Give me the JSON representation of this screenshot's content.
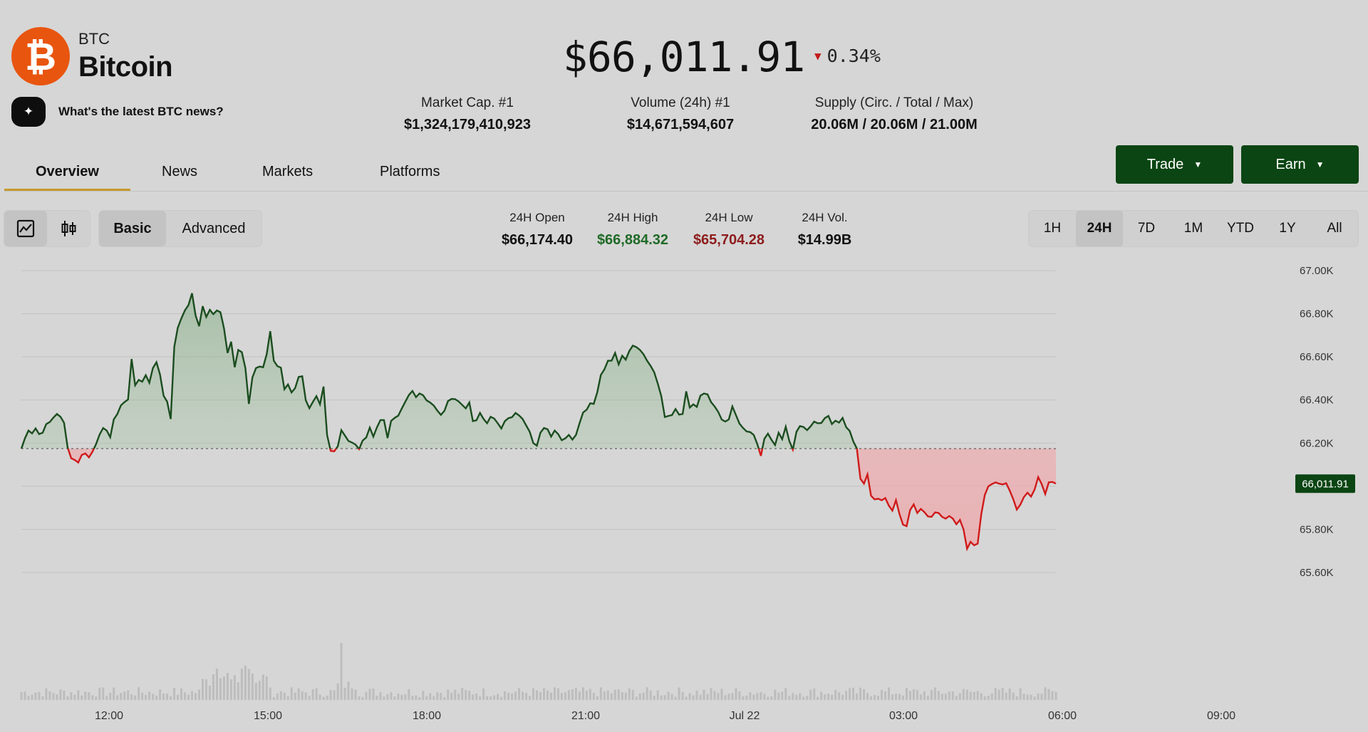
{
  "coin": {
    "symbol": "BTC",
    "name": "Bitcoin",
    "logo_glyph": "₿",
    "logo_color": "#e8550f"
  },
  "price": {
    "value": "$66,011.91",
    "change": "0.34%",
    "direction": "down"
  },
  "news_prompt": "What's the latest BTC news?",
  "stats": [
    {
      "label": "Market Cap. #1",
      "value": "$1,324,179,410,923"
    },
    {
      "label": "Volume (24h) #1",
      "value": "$14,671,594,607"
    },
    {
      "label": "Supply (Circ. / Total / Max)",
      "value": "20.06M / 20.06M / 21.00M"
    }
  ],
  "tabs": [
    {
      "label": "Overview",
      "active": true
    },
    {
      "label": "News",
      "active": false
    },
    {
      "label": "Markets",
      "active": false
    },
    {
      "label": "Platforms",
      "active": false
    }
  ],
  "actions": {
    "trade_label": "Trade",
    "earn_label": "Earn",
    "color": "#0b4513"
  },
  "chart_modes": {
    "basic": "Basic",
    "advanced": "Advanced",
    "selected": "basic"
  },
  "day_stats": [
    {
      "label": "24H Open",
      "value": "$66,174.40",
      "color": "#111111"
    },
    {
      "label": "24H High",
      "value": "$66,884.32",
      "color": "#1f6a27"
    },
    {
      "label": "24H Low",
      "value": "$65,704.28",
      "color": "#8e1d1d"
    },
    {
      "label": "24H Vol.",
      "value": "$14.99B",
      "color": "#111111"
    }
  ],
  "ranges": [
    {
      "label": "1H",
      "selected": false
    },
    {
      "label": "24H",
      "selected": true
    },
    {
      "label": "7D",
      "selected": false
    },
    {
      "label": "1M",
      "selected": false
    },
    {
      "label": "YTD",
      "selected": false
    },
    {
      "label": "1Y",
      "selected": false
    },
    {
      "label": "All",
      "selected": false
    }
  ],
  "chart_data": {
    "type": "line",
    "x_ticks": [
      "12:00",
      "15:00",
      "18:00",
      "21:00",
      "Jul 22",
      "03:00",
      "06:00",
      "09:00"
    ],
    "y_ticks": [
      "67.00K",
      "66.80K",
      "66.60K",
      "66.40K",
      "66.20K",
      "66.00K",
      "65.80K",
      "65.60K"
    ],
    "y_tick_values": [
      67000,
      66800,
      66600,
      66400,
      66200,
      66000,
      65800,
      65600
    ],
    "ylim": [
      65600,
      67000
    ],
    "reference_line": 66174.4,
    "current_label": "66,011.91",
    "current_value": 66011.91,
    "up_color": "#1b4d1f",
    "down_color": "#d01a1a",
    "series": [
      {
        "values": [
          66174,
          66222,
          66258,
          66245,
          66268,
          66242,
          66248,
          66288,
          66298,
          66318,
          66335,
          66322,
          66294,
          66180,
          66130,
          66122,
          66110,
          66145,
          66152,
          66134,
          66160,
          66195,
          66240,
          66270,
          66258,
          66227,
          66310,
          66335,
          66375,
          66390,
          66402,
          66590,
          66468,
          66493,
          66485,
          66515,
          66480,
          66548,
          66575,
          66518,
          66420,
          66392,
          66312,
          66646,
          66735,
          66778,
          66815,
          66840,
          66895,
          66792,
          66742,
          66835,
          66785,
          66818,
          66798,
          66815,
          66807,
          66732,
          66618,
          66670,
          66552,
          66632,
          66622,
          66548,
          66382,
          66505,
          66548,
          66555,
          66552,
          66612,
          66719,
          66582,
          66557,
          66550,
          66450,
          66472,
          66435,
          66455,
          66507,
          66510,
          66398,
          66362,
          66391,
          66418,
          66380,
          66462,
          66237,
          66164,
          66162,
          66185,
          66260,
          66235,
          66210,
          66203,
          66193,
          66172,
          66212,
          66226,
          66272,
          66230,
          66273,
          66307,
          66307,
          66223,
          66303,
          66317,
          66327,
          66360,
          66392,
          66423,
          66442,
          66413,
          66430,
          66422,
          66398,
          66388,
          66374,
          66351,
          66331,
          66350,
          66395,
          66405,
          66404,
          66393,
          66377,
          66361,
          66388,
          66302,
          66306,
          66340,
          66312,
          66292,
          66322,
          66314,
          66292,
          66268,
          66302,
          66316,
          66320,
          66340,
          66328,
          66312,
          66282,
          66252,
          66200,
          66188,
          66248,
          66270,
          66264,
          66230,
          66258,
          66242,
          66213,
          66222,
          66238,
          66216,
          66238,
          66292,
          66342,
          66355,
          66385,
          66382,
          66436,
          66516,
          66542,
          66582,
          66582,
          66618,
          66565,
          66605,
          66587,
          66627,
          66652,
          66645,
          66632,
          66612,
          66582,
          66558,
          66528,
          66476,
          66418,
          66321,
          66326,
          66330,
          66358,
          66332,
          66335,
          66440,
          66365,
          66380,
          66368,
          66420,
          66430,
          66426,
          66390,
          66370,
          66345,
          66309,
          66300,
          66310,
          66370,
          66330,
          66290,
          66270,
          66254,
          66251,
          66238,
          66195,
          66141,
          66220,
          66244,
          66215,
          66191,
          66248,
          66218,
          66276,
          66210,
          66170,
          66252,
          66279,
          66275,
          66260,
          66278,
          66300,
          66292,
          66293,
          66316,
          66326,
          66288,
          66304,
          66295,
          66317,
          66274,
          66256,
          66208,
          66175,
          66035,
          66012,
          66055,
          65956,
          65939,
          65942,
          65935,
          65945,
          65910,
          65887,
          65935,
          65870,
          65822,
          65815,
          65890,
          65916,
          65876,
          65895,
          65880,
          65860,
          65858,
          65879,
          65876,
          65858,
          65850,
          65862,
          65850,
          65824,
          65844,
          65800,
          65710,
          65742,
          65726,
          65734,
          65870,
          65960,
          66000,
          66010,
          66018,
          66012,
          66008,
          66014,
          65980,
          65940,
          65892,
          65915,
          65950,
          65970,
          65952,
          65985,
          66042,
          66010,
          65964,
          66018,
          66020,
          66012
        ]
      }
    ]
  }
}
